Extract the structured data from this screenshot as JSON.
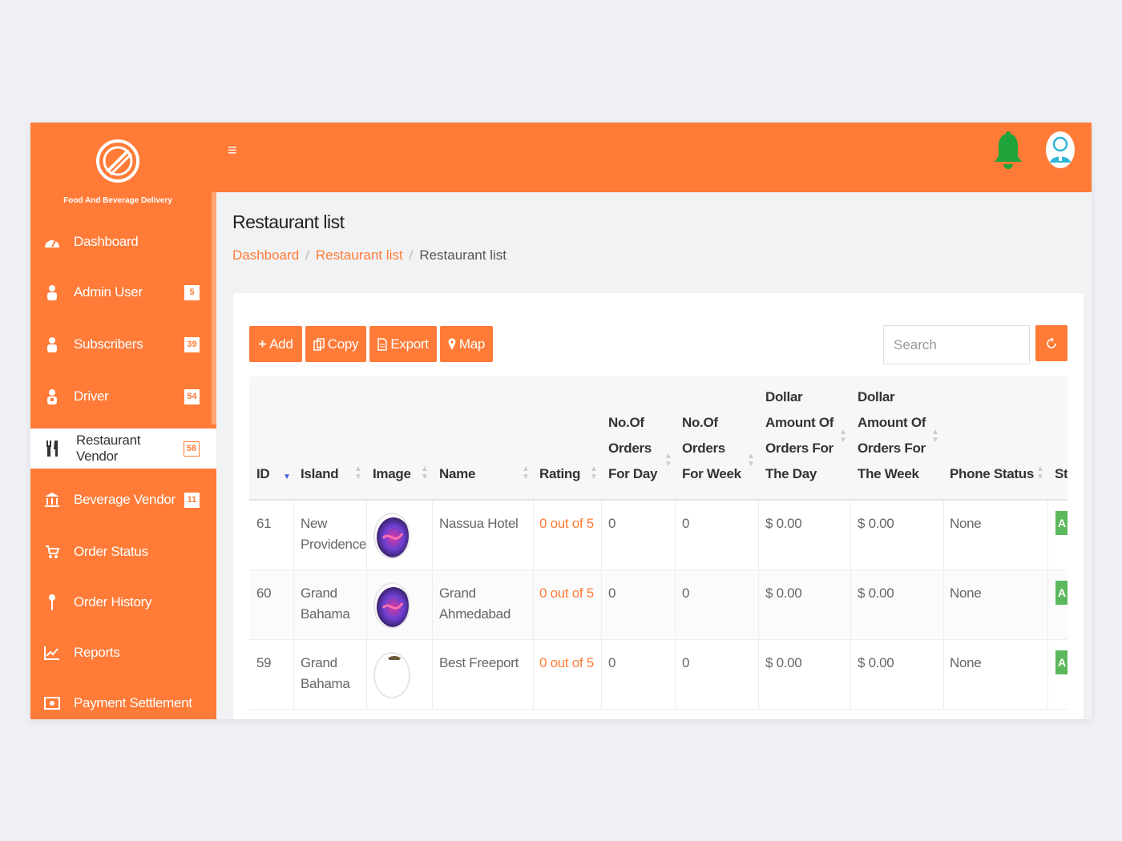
{
  "brand": {
    "name": "Food And Beverage Delivery"
  },
  "colors": {
    "primary": "#ff7b37",
    "bell": "#1fa33a",
    "sort_active": "#4a62d8",
    "status_active": "#5cb85c"
  },
  "sidebar": {
    "items": [
      {
        "label": "Dashboard",
        "icon": "dashboard-icon",
        "badge": ""
      },
      {
        "label": "Admin User",
        "icon": "user-icon",
        "badge": "5"
      },
      {
        "label": "Subscribers",
        "icon": "user-icon",
        "badge": "39"
      },
      {
        "label": "Driver",
        "icon": "driver-icon",
        "badge": "54"
      },
      {
        "label": "Restaurant Vendor",
        "icon": "cutlery-icon",
        "badge": "58",
        "active": true
      },
      {
        "label": "Beverage Vendor",
        "icon": "bank-icon",
        "badge": "11"
      },
      {
        "label": "Order Status",
        "icon": "cart-icon",
        "badge": ""
      },
      {
        "label": "Order History",
        "icon": "pin-icon",
        "badge": ""
      },
      {
        "label": "Reports",
        "icon": "chart-icon",
        "badge": ""
      },
      {
        "label": "Payment Settlement",
        "icon": "money-icon",
        "badge": ""
      }
    ]
  },
  "header": {
    "menu_icon": "hamburger-icon",
    "notification_icon": "bell-icon",
    "profile_icon": "avatar-icon"
  },
  "page": {
    "title": "Restaurant list",
    "breadcrumb": [
      "Dashboard",
      "Restaurant list",
      "Restaurant list"
    ]
  },
  "toolbar": {
    "add": "Add",
    "copy": "Copy",
    "export": "Export",
    "map": "Map",
    "search_placeholder": "Search"
  },
  "table": {
    "headers": {
      "id": "ID",
      "island": "Island",
      "image": "Image",
      "name": "Name",
      "rating": "Rating",
      "orders_day": [
        "No.Of",
        "Orders",
        "For Day"
      ],
      "orders_week": [
        "No.Of",
        "Orders",
        "For Week"
      ],
      "dollar_day": [
        "Dollar",
        "Amount Of",
        "Orders For",
        "The Day"
      ],
      "dollar_week": [
        "Dollar",
        "Amount Of",
        "Orders For",
        "The Week"
      ],
      "phone_status": "Phone Status",
      "status": "St"
    },
    "rows": [
      {
        "id": "61",
        "island": [
          "New",
          "Providence"
        ],
        "name": [
          "Nassua Hotel"
        ],
        "rating": "0 out of 5",
        "orders_day": "0",
        "orders_week": "0",
        "dollar_day": "$ 0.00",
        "dollar_week": "$ 0.00",
        "phone_status": "None",
        "status": "A"
      },
      {
        "id": "60",
        "island": [
          "Grand",
          "Bahama"
        ],
        "name": [
          "Grand",
          "Ahmedabad"
        ],
        "rating": "0 out of 5",
        "orders_day": "0",
        "orders_week": "0",
        "dollar_day": "$ 0.00",
        "dollar_week": "$ 0.00",
        "phone_status": "None",
        "status": "A"
      },
      {
        "id": "59",
        "island": [
          "Grand",
          "Bahama"
        ],
        "name": [
          "Best Freeport"
        ],
        "rating": "0 out of 5",
        "orders_day": "0",
        "orders_week": "0",
        "dollar_day": "$ 0.00",
        "dollar_week": "$ 0.00",
        "phone_status": "None",
        "status": "A"
      }
    ]
  }
}
